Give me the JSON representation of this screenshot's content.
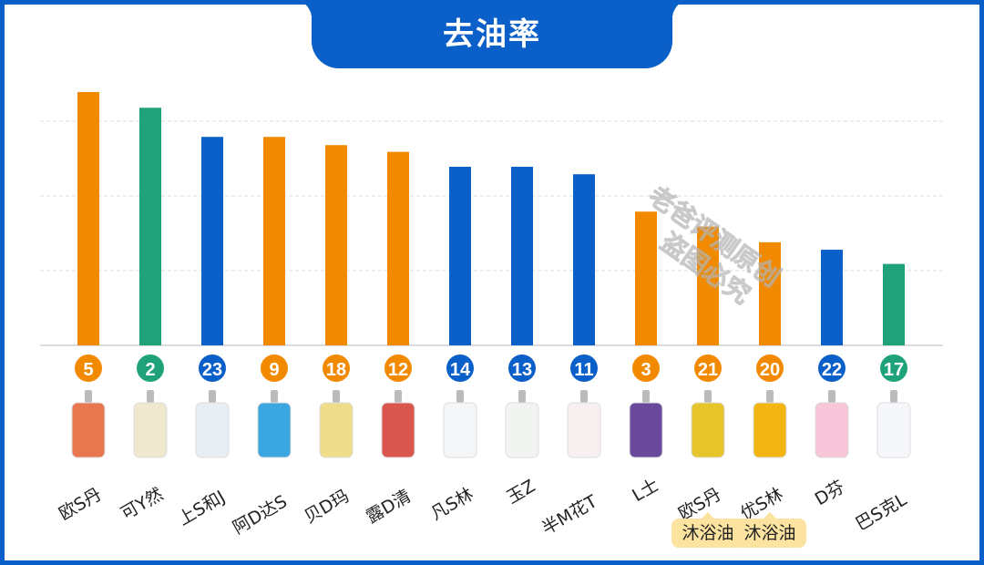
{
  "chart_data": {
    "type": "bar",
    "title": "去油率",
    "categories": [
      "欧S丹",
      "可Y然",
      "上S和J",
      "阿D达S",
      "贝D玛",
      "露D清",
      "凡S林",
      "玉Z",
      "半M花T",
      "L士",
      "欧S丹",
      "优S林",
      "D芬",
      "巴S克L"
    ],
    "values": [
      3.39,
      3.18,
      2.79,
      2.79,
      2.68,
      2.59,
      2.39,
      2.39,
      2.29,
      1.79,
      1.59,
      1.38,
      1.28,
      1.09
    ],
    "ylim": [
      0,
      3.5
    ],
    "gridlines": [
      1,
      2,
      3
    ],
    "grid": true,
    "ranks": [
      "5",
      "2",
      "23",
      "9",
      "18",
      "12",
      "14",
      "13",
      "11",
      "3",
      "21",
      "20",
      "22",
      "17"
    ],
    "bar_colors": [
      "#f28a00",
      "#1fa27a",
      "#0b5fc8",
      "#f28a00",
      "#f28a00",
      "#f28a00",
      "#0b5fc8",
      "#0b5fc8",
      "#0b5fc8",
      "#f28a00",
      "#f28a00",
      "#f28a00",
      "#0b5fc8",
      "#1fa27a"
    ],
    "product_colors": [
      "#e8764f",
      "#efe8cf",
      "#e9eef2",
      "#3aa7e0",
      "#eedd8a",
      "#d9574e",
      "#f4f6f8",
      "#f2f4f2",
      "#f7f0f0",
      "#6a4a9c",
      "#e6c52a",
      "#f2b512",
      "#f7c6d8",
      "#f6f7fa"
    ],
    "annotations": [
      {
        "index": 10,
        "text": "沐浴油"
      },
      {
        "index": 11,
        "text": "沐浴油"
      }
    ]
  },
  "watermark": {
    "line1": "老爸评测原创",
    "line2": "盗图必究"
  },
  "colors": {
    "frame": "#0b5fc8",
    "orange": "#f28a00",
    "green": "#1fa27a",
    "blue": "#0b5fc8",
    "tag": "#fde3a0"
  }
}
